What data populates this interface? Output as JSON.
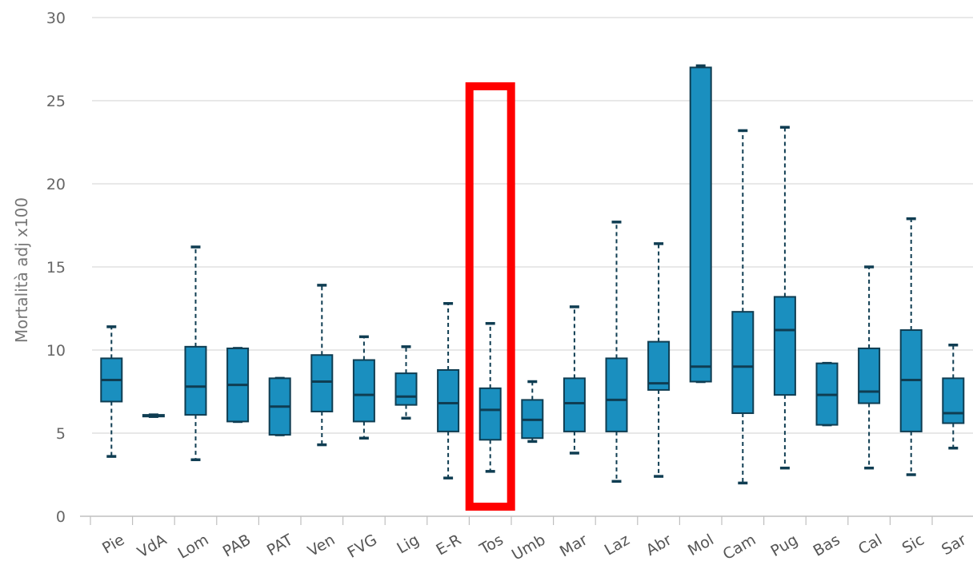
{
  "chart_data": {
    "type": "box",
    "ylabel": "Mortalità adj x100",
    "ylim": [
      0,
      30
    ],
    "yticks": [
      0,
      5,
      10,
      15,
      20,
      25,
      30
    ],
    "grid": true,
    "categories": [
      "Pie",
      "VdA",
      "Lom",
      "PAB",
      "PAT",
      "Ven",
      "FVG",
      "Lig",
      "E-R",
      "Tos",
      "Umb",
      "Mar",
      "Laz",
      "Abr",
      "Mol",
      "Cam",
      "Pug",
      "Bas",
      "Cal",
      "Sic",
      "Sar"
    ],
    "boxes": [
      {
        "min": 3.6,
        "q1": 6.9,
        "median": 8.2,
        "q3": 9.5,
        "max": 11.4
      },
      {
        "min": 6.0,
        "q1": 6.0,
        "median": 6.05,
        "q3": 6.1,
        "max": 6.1
      },
      {
        "min": 3.4,
        "q1": 6.1,
        "median": 7.8,
        "q3": 10.2,
        "max": 16.2
      },
      {
        "min": 5.7,
        "q1": 5.7,
        "median": 7.9,
        "q3": 10.1,
        "max": 10.1
      },
      {
        "min": 4.9,
        "q1": 4.9,
        "median": 6.6,
        "q3": 8.3,
        "max": 8.3
      },
      {
        "min": 4.3,
        "q1": 6.3,
        "median": 8.1,
        "q3": 9.7,
        "max": 13.9
      },
      {
        "min": 4.7,
        "q1": 5.7,
        "median": 7.3,
        "q3": 9.4,
        "max": 10.8
      },
      {
        "min": 5.9,
        "q1": 6.7,
        "median": 7.2,
        "q3": 8.6,
        "max": 10.2
      },
      {
        "min": 2.3,
        "q1": 5.1,
        "median": 6.8,
        "q3": 8.8,
        "max": 12.8
      },
      {
        "min": 2.7,
        "q1": 4.6,
        "median": 6.4,
        "q3": 7.7,
        "max": 11.6
      },
      {
        "min": 4.5,
        "q1": 4.7,
        "median": 5.8,
        "q3": 7.0,
        "max": 8.1
      },
      {
        "min": 3.8,
        "q1": 5.1,
        "median": 6.8,
        "q3": 8.3,
        "max": 12.6
      },
      {
        "min": 2.1,
        "q1": 5.1,
        "median": 7.0,
        "q3": 9.5,
        "max": 17.7
      },
      {
        "min": 2.4,
        "q1": 7.6,
        "median": 8.0,
        "q3": 10.5,
        "max": 16.4
      },
      {
        "min": 8.1,
        "q1": 8.1,
        "median": 9.0,
        "q3": 27.0,
        "max": 27.1
      },
      {
        "min": 2.0,
        "q1": 6.2,
        "median": 9.0,
        "q3": 12.3,
        "max": 23.2
      },
      {
        "min": 2.9,
        "q1": 7.3,
        "median": 11.2,
        "q3": 13.2,
        "max": 23.4
      },
      {
        "min": 5.5,
        "q1": 5.5,
        "median": 7.3,
        "q3": 9.2,
        "max": 9.2
      },
      {
        "min": 2.9,
        "q1": 6.8,
        "median": 7.5,
        "q3": 10.1,
        "max": 15.0
      },
      {
        "min": 2.5,
        "q1": 5.1,
        "median": 8.2,
        "q3": 11.2,
        "max": 17.9
      },
      {
        "min": 4.1,
        "q1": 5.6,
        "median": 6.2,
        "q3": 8.3,
        "max": 10.3
      }
    ],
    "highlight": {
      "category": "Tos",
      "color": "#ff0000"
    },
    "colors": {
      "box_fill": "#1a8fbf",
      "box_stroke": "#0f3d52",
      "grid": "#d9d9d9",
      "axis": "#bfbfbf"
    }
  }
}
